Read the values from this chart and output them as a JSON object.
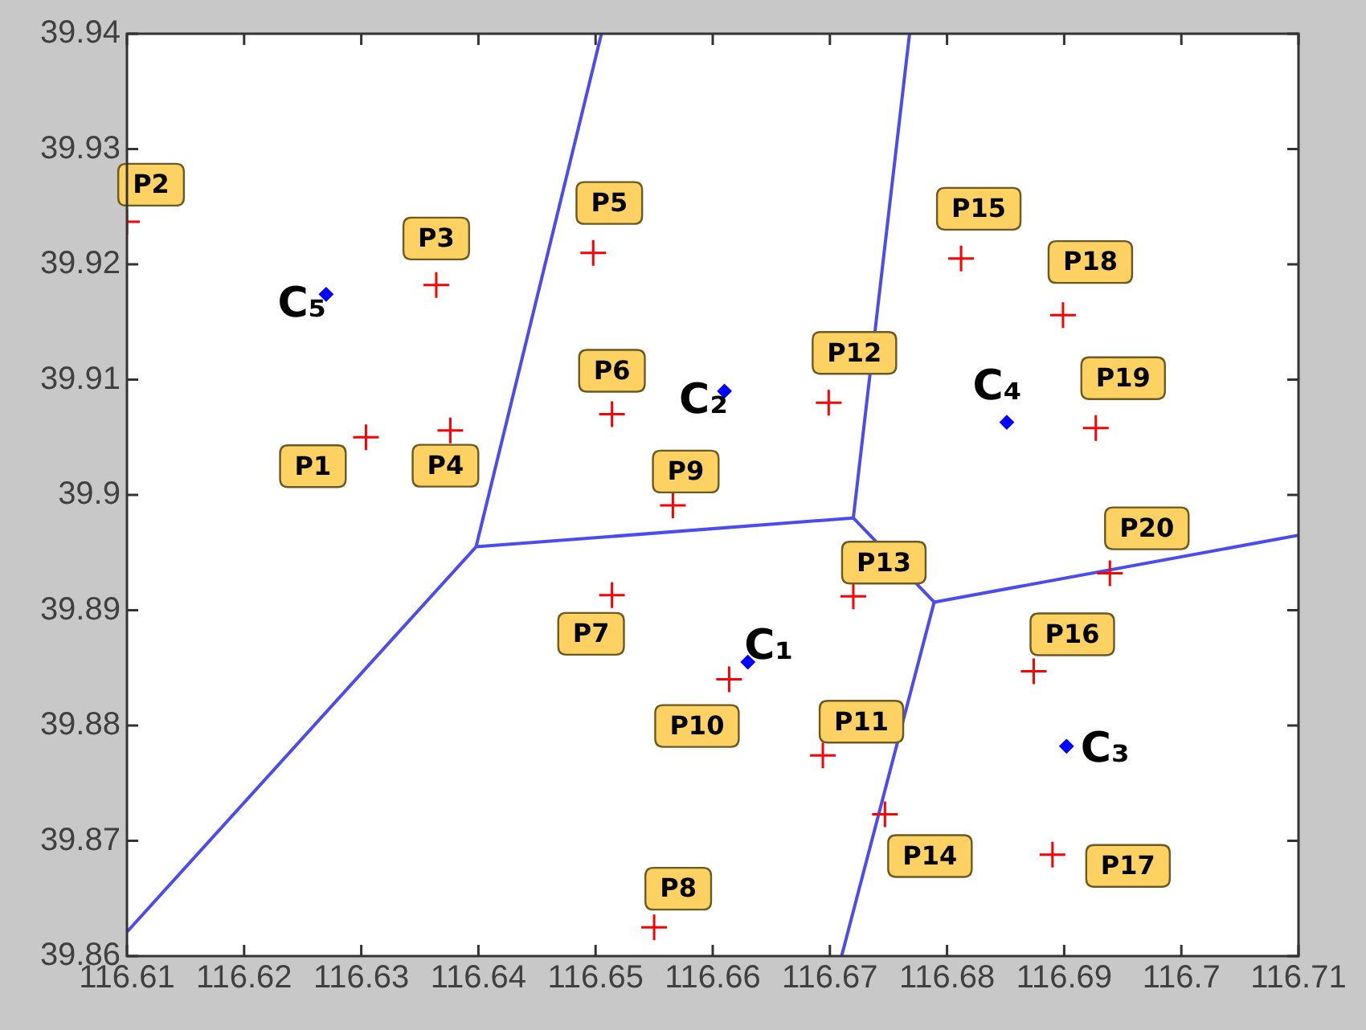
{
  "chart_data": {
    "type": "scatter",
    "xlim": [
      116.61,
      116.71
    ],
    "xticks": [
      116.61,
      116.62,
      116.63,
      116.64,
      116.65,
      116.66,
      116.67,
      116.68,
      116.69,
      116.7,
      116.71
    ],
    "ylim": [
      39.86,
      39.94
    ],
    "yticks": [
      39.86,
      39.87,
      39.88,
      39.89,
      39.9,
      39.91,
      39.92,
      39.93,
      39.94
    ],
    "grid": false,
    "legend": false,
    "series": [
      {
        "color": "#ff0000",
        "marker": "cross",
        "x": [
          116.6304,
          116.61,
          116.6364,
          116.6376,
          116.6498,
          116.6514,
          116.6514,
          116.655,
          116.6566,
          116.6614,
          116.6694,
          116.6699,
          116.672,
          116.6747,
          116.6812,
          116.6874,
          116.689,
          116.6899,
          116.6927,
          116.6939
        ],
        "values": [
          39.905,
          39.9237,
          39.9182,
          39.9056,
          39.921,
          39.907,
          39.8913,
          39.8625,
          39.8991,
          39.884,
          39.8774,
          39.908,
          39.8912,
          39.8723,
          39.9205,
          39.8847,
          39.8688,
          39.9156,
          39.9058,
          39.8932
        ],
        "value_labels": [
          "P1",
          "P2",
          "P3",
          "P4",
          "P5",
          "P6",
          "P7",
          "P8",
          "P9",
          "P10",
          "P11",
          "P12",
          "P13",
          "P14",
          "P15",
          "P16",
          "P17",
          "P18",
          "P19",
          "P20"
        ]
      },
      {
        "color": "#0000ff",
        "marker": "diamond",
        "x": [
          116.663,
          116.661,
          116.6902,
          116.6851,
          116.627
        ],
        "values": [
          39.8855,
          39.909,
          39.8782,
          39.9063,
          39.9174
        ],
        "value_labels": [
          "C₁",
          "C₂",
          "C₃",
          "C₄",
          "C₅"
        ]
      },
      {
        "type": "line",
        "color": "#4b4bf0",
        "marker": "none",
        "x": [
          116.61,
          116.6398,
          116.672,
          116.6768
        ],
        "values": [
          39.8621,
          39.8955,
          39.898,
          39.94
        ]
      },
      {
        "type": "line",
        "color": "#4b4bf0",
        "marker": "none",
        "x": [
          116.6398,
          116.6505
        ],
        "values": [
          39.8955,
          39.94
        ]
      },
      {
        "type": "line",
        "color": "#4b4bf0",
        "marker": "none",
        "x": [
          116.672,
          116.6789,
          116.71
        ],
        "values": [
          39.898,
          39.8907,
          39.8965
        ]
      },
      {
        "type": "line",
        "color": "#4b4bf0",
        "marker": "none",
        "x": [
          116.6789,
          116.671
        ],
        "values": [
          39.8907,
          39.86
        ]
      }
    ]
  }
}
